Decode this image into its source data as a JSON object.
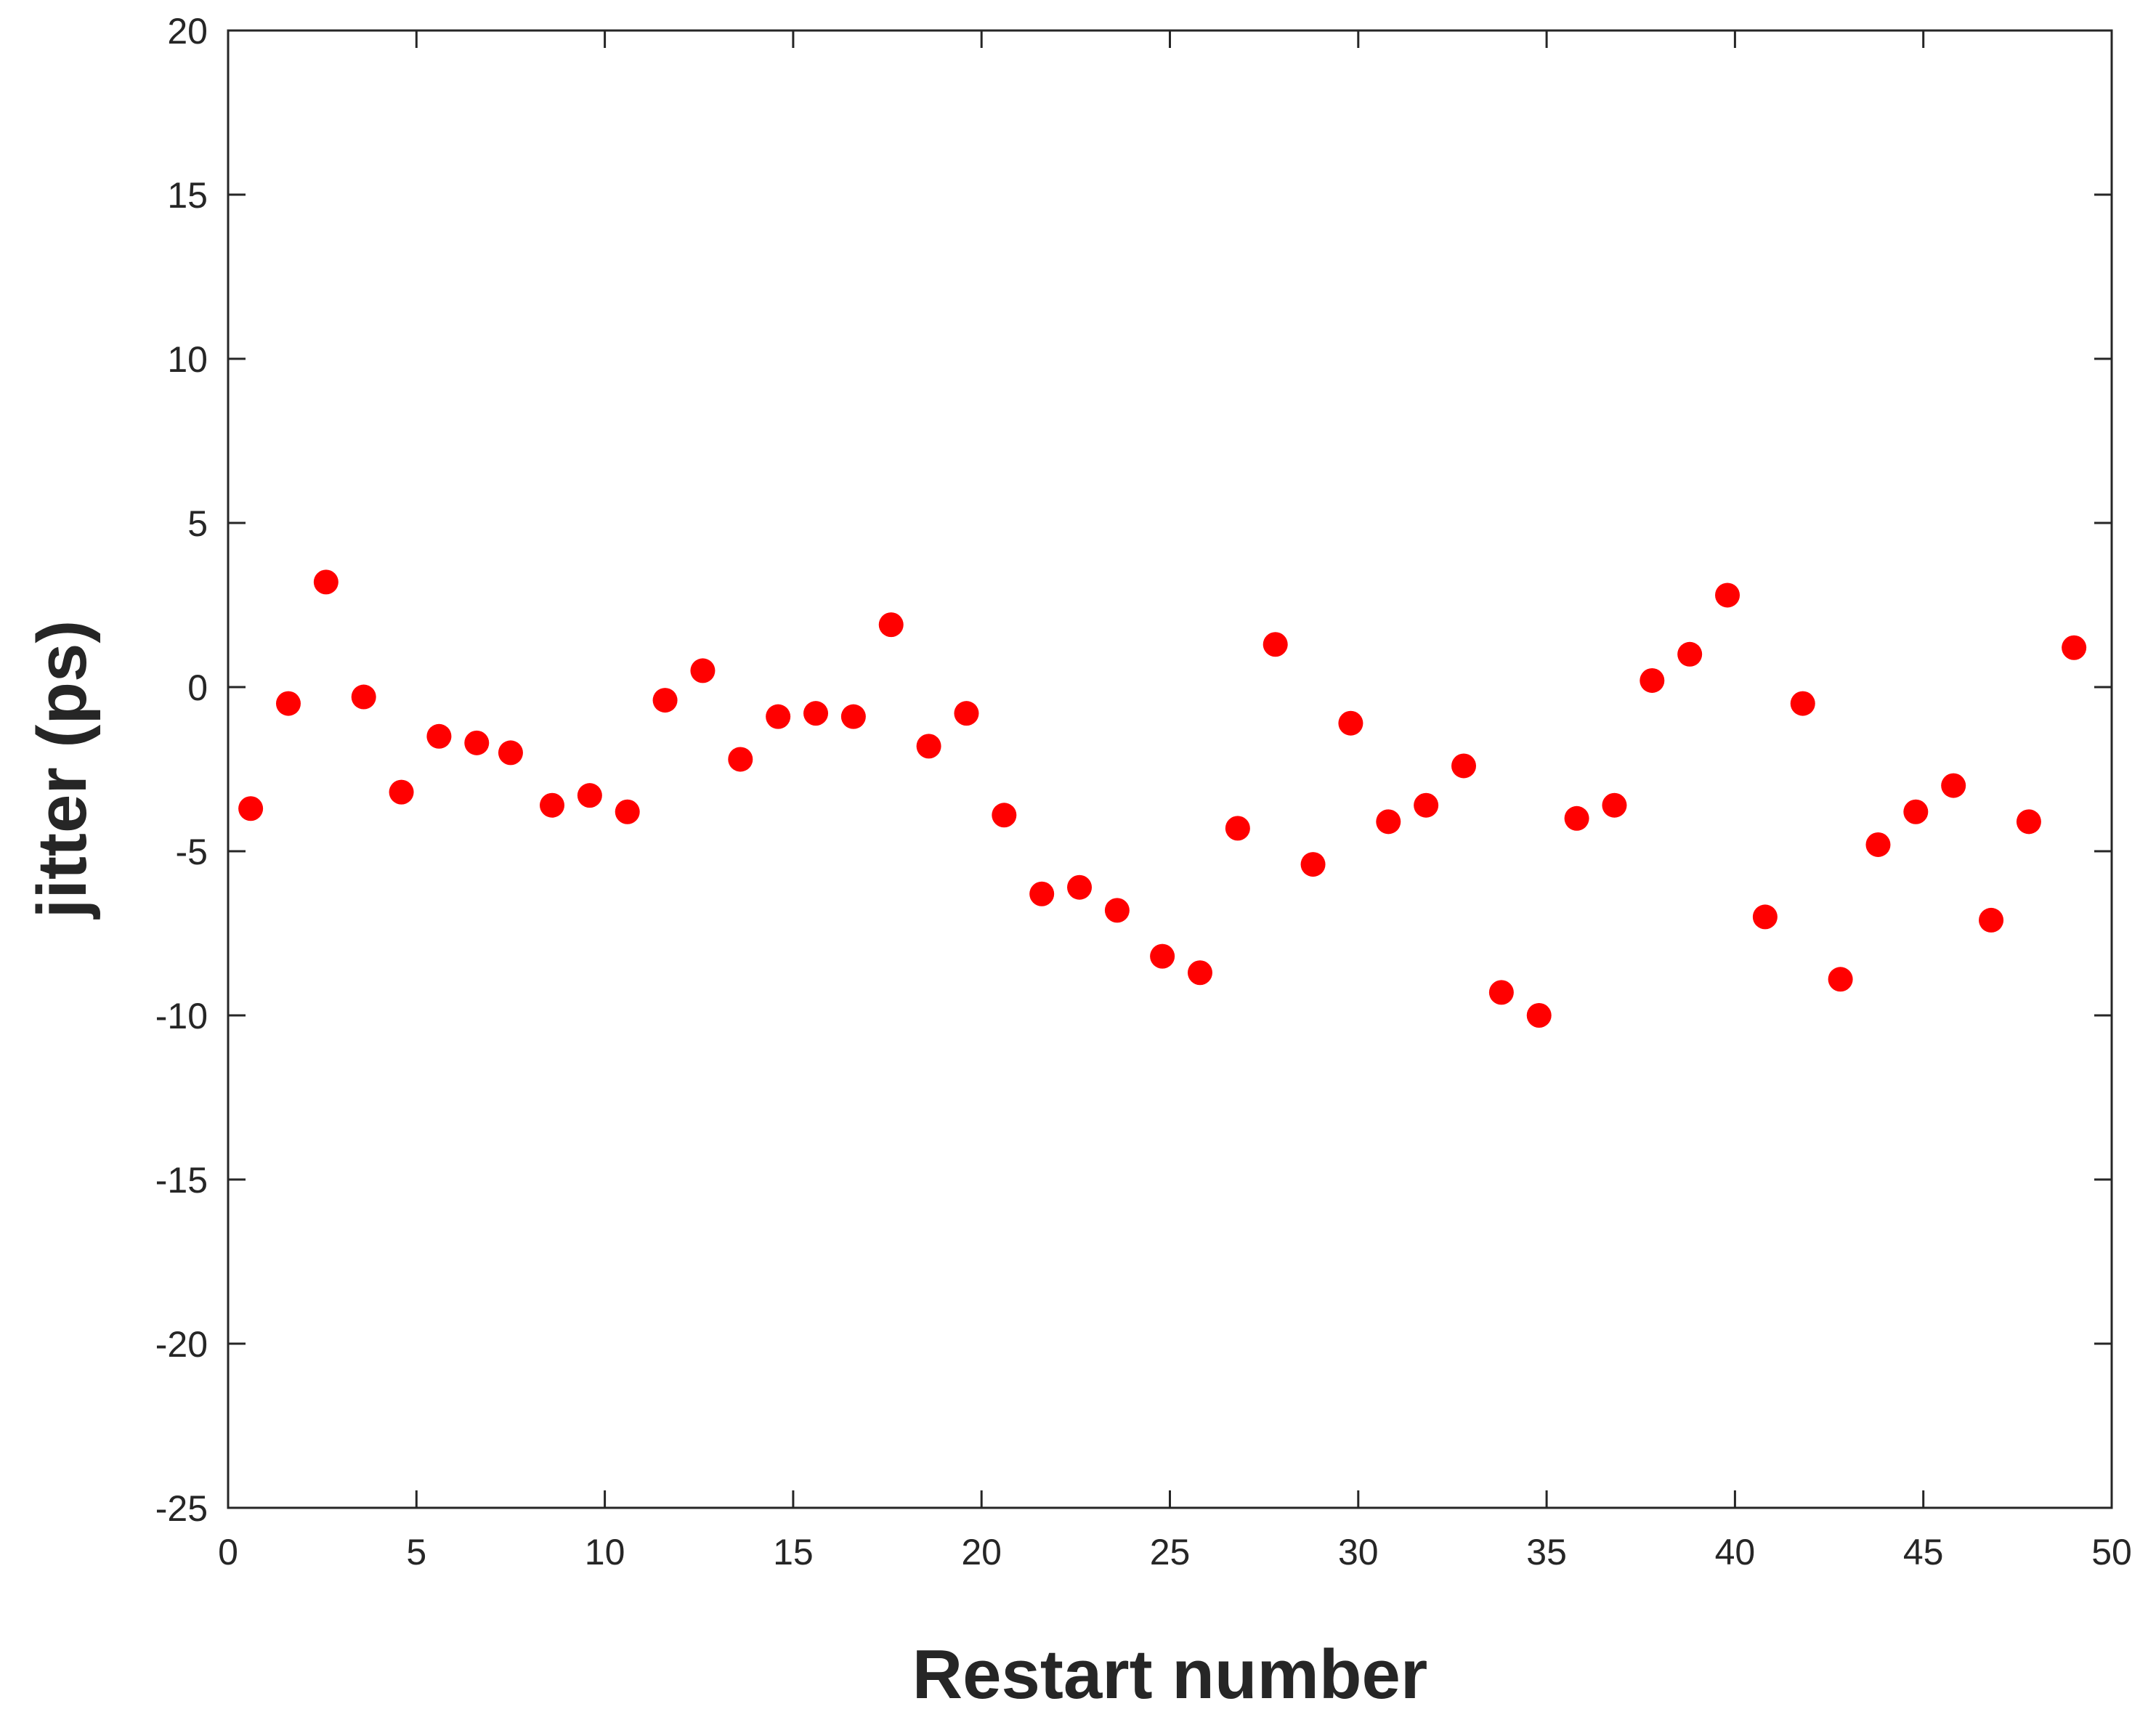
{
  "chart_data": {
    "type": "scatter",
    "title": "",
    "xlabel": "Restart number",
    "ylabel": "jitter (ps)",
    "xlim": [
      0,
      50
    ],
    "ylim": [
      -25,
      20
    ],
    "xticks": [
      0,
      5,
      10,
      15,
      20,
      25,
      30,
      35,
      40,
      45,
      50
    ],
    "yticks": [
      20,
      15,
      10,
      5,
      0,
      -5,
      -10,
      -15,
      -20,
      -25
    ],
    "grid": false,
    "marker_color": "#ff0000",
    "axis_color": "#262626",
    "series": [
      {
        "x": [
          0.6,
          1.6,
          2.6,
          3.6,
          4.6,
          5.6,
          6.6,
          7.5,
          8.6,
          9.6,
          10.6,
          11.6,
          12.6,
          13.6,
          14.6,
          15.6,
          16.6,
          17.6,
          18.6,
          19.6,
          20.6,
          21.6,
          22.6,
          23.6,
          24.8,
          25.8,
          26.8,
          27.8,
          28.8,
          29.8,
          30.8,
          31.8,
          32.8,
          33.8,
          34.8,
          35.8,
          36.8,
          37.8,
          38.8,
          39.8,
          40.8,
          41.8,
          42.8,
          43.8,
          44.8,
          45.8,
          46.8,
          47.8,
          49.0
        ],
        "y": [
          -3.7,
          -0.5,
          3.2,
          -0.3,
          -3.2,
          -1.5,
          -1.7,
          -2.0,
          -3.6,
          -3.3,
          -3.8,
          -0.4,
          0.5,
          -2.2,
          -0.9,
          -0.8,
          -0.9,
          1.9,
          -1.8,
          -0.8,
          -3.9,
          -6.3,
          -6.1,
          -6.8,
          -8.2,
          -8.7,
          -4.3,
          1.3,
          -5.4,
          -1.1,
          -4.1,
          -3.6,
          -2.4,
          -9.3,
          -10.0,
          -4.0,
          -3.6,
          0.2,
          1.0,
          2.8,
          -7.0,
          -0.5,
          -8.9,
          -4.8,
          -3.8,
          -3.0,
          -7.1,
          -4.1,
          1.2
        ]
      }
    ]
  }
}
